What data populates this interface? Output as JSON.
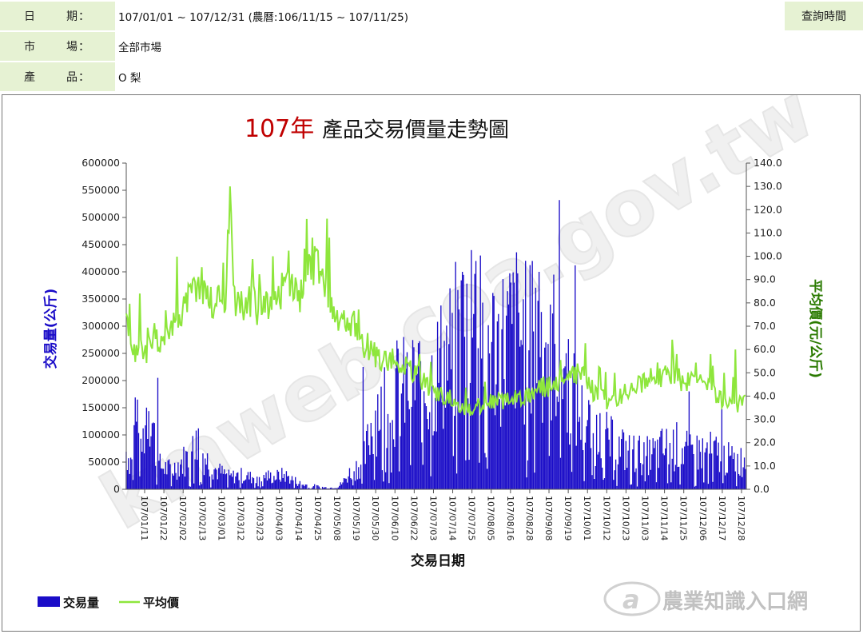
{
  "filters": {
    "date": {
      "label_1": "日",
      "label_2": "期：",
      "value": "107/01/01 ~ 107/12/31 (農曆:106/11/15 ~ 107/11/25)"
    },
    "market": {
      "label_1": "市",
      "label_2": "場：",
      "value": "全部市場"
    },
    "product": {
      "label_1": "產",
      "label_2": "品：",
      "value": "O 梨"
    },
    "query_button": "查詢時間"
  },
  "chart_data": {
    "type": "bar+line",
    "title_year": "107年",
    "title_rest": "產品交易價量走勢圖",
    "xlabel": "交易日期",
    "y_left_label": "交易量(公斤)",
    "y_right_label": "平均價(元/公斤)",
    "y_left_range": [
      0,
      600000
    ],
    "y_right_range": [
      0,
      140
    ],
    "y_left_ticks": [
      "600000",
      "550000",
      "500000",
      "450000",
      "400000",
      "350000",
      "300000",
      "250000",
      "200000",
      "150000",
      "100000",
      "50000",
      "0"
    ],
    "y_right_ticks": [
      "140.0",
      "130.0",
      "120.0",
      "110.0",
      "100.0",
      "90.0",
      "80.0",
      "70.0",
      "60.0",
      "50.0",
      "40.0",
      "30.0",
      "20.0",
      "10.0",
      "0.0"
    ],
    "x_ticks": [
      "107/01/11",
      "107/01/22",
      "107/02/02",
      "107/02/13",
      "107/03/01",
      "107/03/12",
      "107/03/23",
      "107/04/03",
      "107/04/14",
      "107/04/25",
      "107/05/08",
      "107/05/19",
      "107/05/30",
      "107/06/10",
      "107/06/22",
      "107/07/03",
      "107/07/14",
      "107/07/25",
      "107/08/05",
      "107/08/16",
      "107/08/28",
      "107/09/08",
      "107/09/19",
      "107/10/01",
      "107/10/12",
      "107/10/23",
      "107/11/03",
      "107/11/14",
      "107/11/25",
      "107/12/06",
      "107/12/17",
      "107/12/28"
    ],
    "volume_profile": [
      [
        0,
        80000
      ],
      [
        4,
        60000
      ],
      [
        8,
        160000
      ],
      [
        12,
        50000
      ],
      [
        20,
        200000
      ],
      [
        28,
        50000
      ],
      [
        40,
        40000
      ],
      [
        48,
        55000
      ],
      [
        56,
        70000
      ],
      [
        64,
        95000
      ],
      [
        72,
        60000
      ],
      [
        80,
        40000
      ],
      [
        92,
        25000
      ],
      [
        100,
        30000
      ],
      [
        110,
        25000
      ],
      [
        120,
        30000
      ],
      [
        130,
        25000
      ],
      [
        140,
        30000
      ],
      [
        148,
        20000
      ],
      [
        156,
        10000
      ],
      [
        164,
        8000
      ],
      [
        172,
        5000
      ],
      [
        180,
        3000
      ],
      [
        188,
        5000
      ],
      [
        194,
        20000
      ],
      [
        200,
        40000
      ],
      [
        206,
        50000
      ],
      [
        212,
        70000
      ],
      [
        216,
        120000
      ],
      [
        222,
        170000
      ],
      [
        232,
        210000
      ],
      [
        244,
        200000
      ],
      [
        256,
        230000
      ],
      [
        266,
        210000
      ],
      [
        276,
        250000
      ],
      [
        286,
        280000
      ],
      [
        296,
        320000
      ],
      [
        306,
        350000
      ],
      [
        316,
        330000
      ],
      [
        326,
        300000
      ],
      [
        336,
        310000
      ],
      [
        346,
        330000
      ],
      [
        356,
        300000
      ],
      [
        366,
        330000
      ],
      [
        376,
        310000
      ],
      [
        386,
        280000
      ],
      [
        396,
        190000
      ],
      [
        406,
        140000
      ],
      [
        416,
        120000
      ],
      [
        428,
        100000
      ],
      [
        440,
        80000
      ],
      [
        452,
        75000
      ],
      [
        464,
        70000
      ],
      [
        476,
        85000
      ],
      [
        488,
        90000
      ],
      [
        500,
        75000
      ],
      [
        512,
        80000
      ],
      [
        524,
        75000
      ],
      [
        536,
        60000
      ],
      [
        549,
        60000
      ]
    ],
    "volume_spikes": [
      [
        10,
        165000
      ],
      [
        28,
        205000
      ],
      [
        62,
        108000
      ],
      [
        210,
        225000
      ],
      [
        298,
        400000
      ],
      [
        306,
        440000
      ],
      [
        310,
        420000
      ],
      [
        314,
        430000
      ],
      [
        344,
        380000
      ],
      [
        360,
        420000
      ],
      [
        366,
        400000
      ],
      [
        384,
        532000
      ],
      [
        398,
        412000
      ],
      [
        420,
        140000
      ],
      [
        440,
        110000
      ],
      [
        499,
        180000
      ],
      [
        528,
        148000
      ]
    ],
    "price_profile": [
      [
        0,
        70
      ],
      [
        6,
        55
      ],
      [
        12,
        65
      ],
      [
        18,
        56
      ],
      [
        24,
        68
      ],
      [
        30,
        58
      ],
      [
        36,
        70
      ],
      [
        42,
        72
      ],
      [
        48,
        76
      ],
      [
        54,
        80
      ],
      [
        60,
        86
      ],
      [
        66,
        90
      ],
      [
        72,
        84
      ],
      [
        78,
        78
      ],
      [
        84,
        85
      ],
      [
        88,
        80
      ],
      [
        92,
        128
      ],
      [
        96,
        82
      ],
      [
        100,
        80
      ],
      [
        106,
        79
      ],
      [
        112,
        82
      ],
      [
        116,
        78
      ],
      [
        120,
        82
      ],
      [
        126,
        80
      ],
      [
        130,
        86
      ],
      [
        136,
        84
      ],
      [
        140,
        86
      ],
      [
        146,
        88
      ],
      [
        152,
        84
      ],
      [
        158,
        80
      ],
      [
        162,
        92
      ],
      [
        168,
        96
      ],
      [
        172,
        92
      ],
      [
        178,
        86
      ],
      [
        184,
        75
      ],
      [
        190,
        70
      ],
      [
        196,
        72
      ],
      [
        202,
        68
      ],
      [
        208,
        64
      ],
      [
        216,
        60
      ],
      [
        224,
        56
      ],
      [
        232,
        56
      ],
      [
        240,
        54
      ],
      [
        248,
        52
      ],
      [
        256,
        50
      ],
      [
        264,
        46
      ],
      [
        270,
        42
      ],
      [
        278,
        40
      ],
      [
        284,
        40
      ],
      [
        290,
        38
      ],
      [
        296,
        36
      ],
      [
        304,
        34
      ],
      [
        312,
        36
      ],
      [
        318,
        36
      ],
      [
        324,
        38
      ],
      [
        330,
        38
      ],
      [
        338,
        38
      ],
      [
        346,
        40
      ],
      [
        354,
        40
      ],
      [
        362,
        42
      ],
      [
        370,
        44
      ],
      [
        378,
        44
      ],
      [
        384,
        44
      ],
      [
        388,
        46
      ],
      [
        394,
        48
      ],
      [
        398,
        50
      ],
      [
        404,
        48
      ],
      [
        410,
        46
      ],
      [
        414,
        42
      ],
      [
        420,
        40
      ],
      [
        426,
        38
      ],
      [
        434,
        38
      ],
      [
        440,
        40
      ],
      [
        446,
        44
      ],
      [
        452,
        46
      ],
      [
        458,
        46
      ],
      [
        464,
        48
      ],
      [
        470,
        50
      ],
      [
        476,
        48
      ],
      [
        482,
        50
      ],
      [
        488,
        48
      ],
      [
        494,
        46
      ],
      [
        500,
        46
      ],
      [
        506,
        48
      ],
      [
        512,
        44
      ],
      [
        518,
        44
      ],
      [
        524,
        40
      ],
      [
        530,
        38
      ],
      [
        536,
        36
      ],
      [
        542,
        36
      ],
      [
        549,
        42
      ]
    ],
    "price_spikes": [
      [
        92,
        130
      ],
      [
        130,
        100
      ],
      [
        142,
        92
      ],
      [
        160,
        116
      ],
      [
        165,
        108
      ],
      [
        180,
        108
      ],
      [
        260,
        58
      ],
      [
        400,
        54
      ],
      [
        420,
        52
      ],
      [
        488,
        58
      ],
      [
        518,
        58
      ],
      [
        530,
        50
      ],
      [
        540,
        60
      ]
    ],
    "legend": [
      {
        "name": "交易量",
        "color": "#1a0cc8"
      },
      {
        "name": "平均價",
        "color": "#8ee63c"
      }
    ],
    "watermark": "kmweb.coa.gov.tw",
    "logo_text": "農業知識入口網",
    "colors": {
      "bar": "#1a0cc8",
      "line": "#8ee63c",
      "title_year": "#c00000",
      "left_axis_label": "#1a0cc8",
      "right_axis_label": "#2a7a00"
    }
  }
}
